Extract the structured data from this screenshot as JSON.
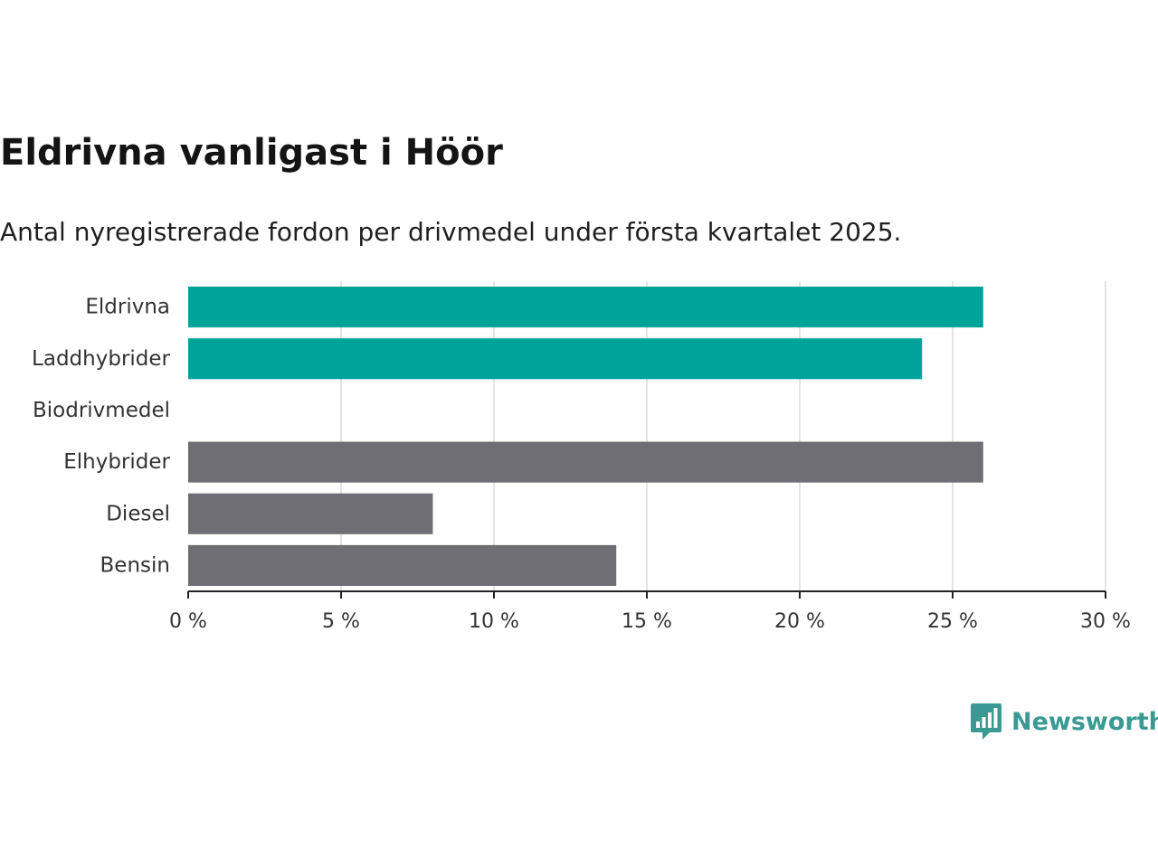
{
  "header": {
    "title": "Eldrivna vanligast i Höör",
    "subtitle": "Antal nyregistrerade fordon per drivmedel under första kvartalet 2025."
  },
  "logo": {
    "text": "Newsworthy",
    "icon": "bar-chart-speech-bubble-icon",
    "color": "#3a9a93"
  },
  "chart_data": {
    "type": "bar",
    "orientation": "horizontal",
    "categories": [
      "Eldrivna",
      "Laddhybrider",
      "Biodrivmedel",
      "Elhybrider",
      "Diesel",
      "Bensin"
    ],
    "values": [
      26,
      24,
      0,
      26,
      8,
      14
    ],
    "bar_colors": [
      "#00a39a",
      "#00a39a",
      "#00a39a",
      "#6f6e74",
      "#6f6e74",
      "#6f6e74"
    ],
    "xlim": [
      0,
      30
    ],
    "xticks": [
      0,
      5,
      10,
      15,
      20,
      25,
      30
    ],
    "xtick_labels": [
      "0 %",
      "5 %",
      "10 %",
      "15 %",
      "20 %",
      "25 %",
      "30 %"
    ],
    "grid": true,
    "xlabel": "",
    "ylabel": ""
  }
}
